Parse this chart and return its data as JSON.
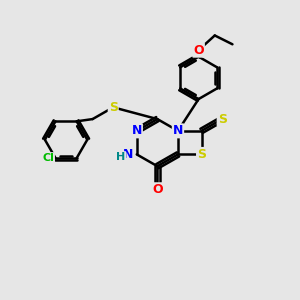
{
  "bg_color": "#e6e6e6",
  "bond_color": "#000000",
  "bond_width": 1.8,
  "atom_colors": {
    "N": "#0000ff",
    "S": "#cccc00",
    "O": "#ff0000",
    "Cl": "#00bb00",
    "H": "#008888"
  },
  "font_size": 8,
  "fig_size": [
    3.0,
    3.0
  ],
  "dpi": 100
}
